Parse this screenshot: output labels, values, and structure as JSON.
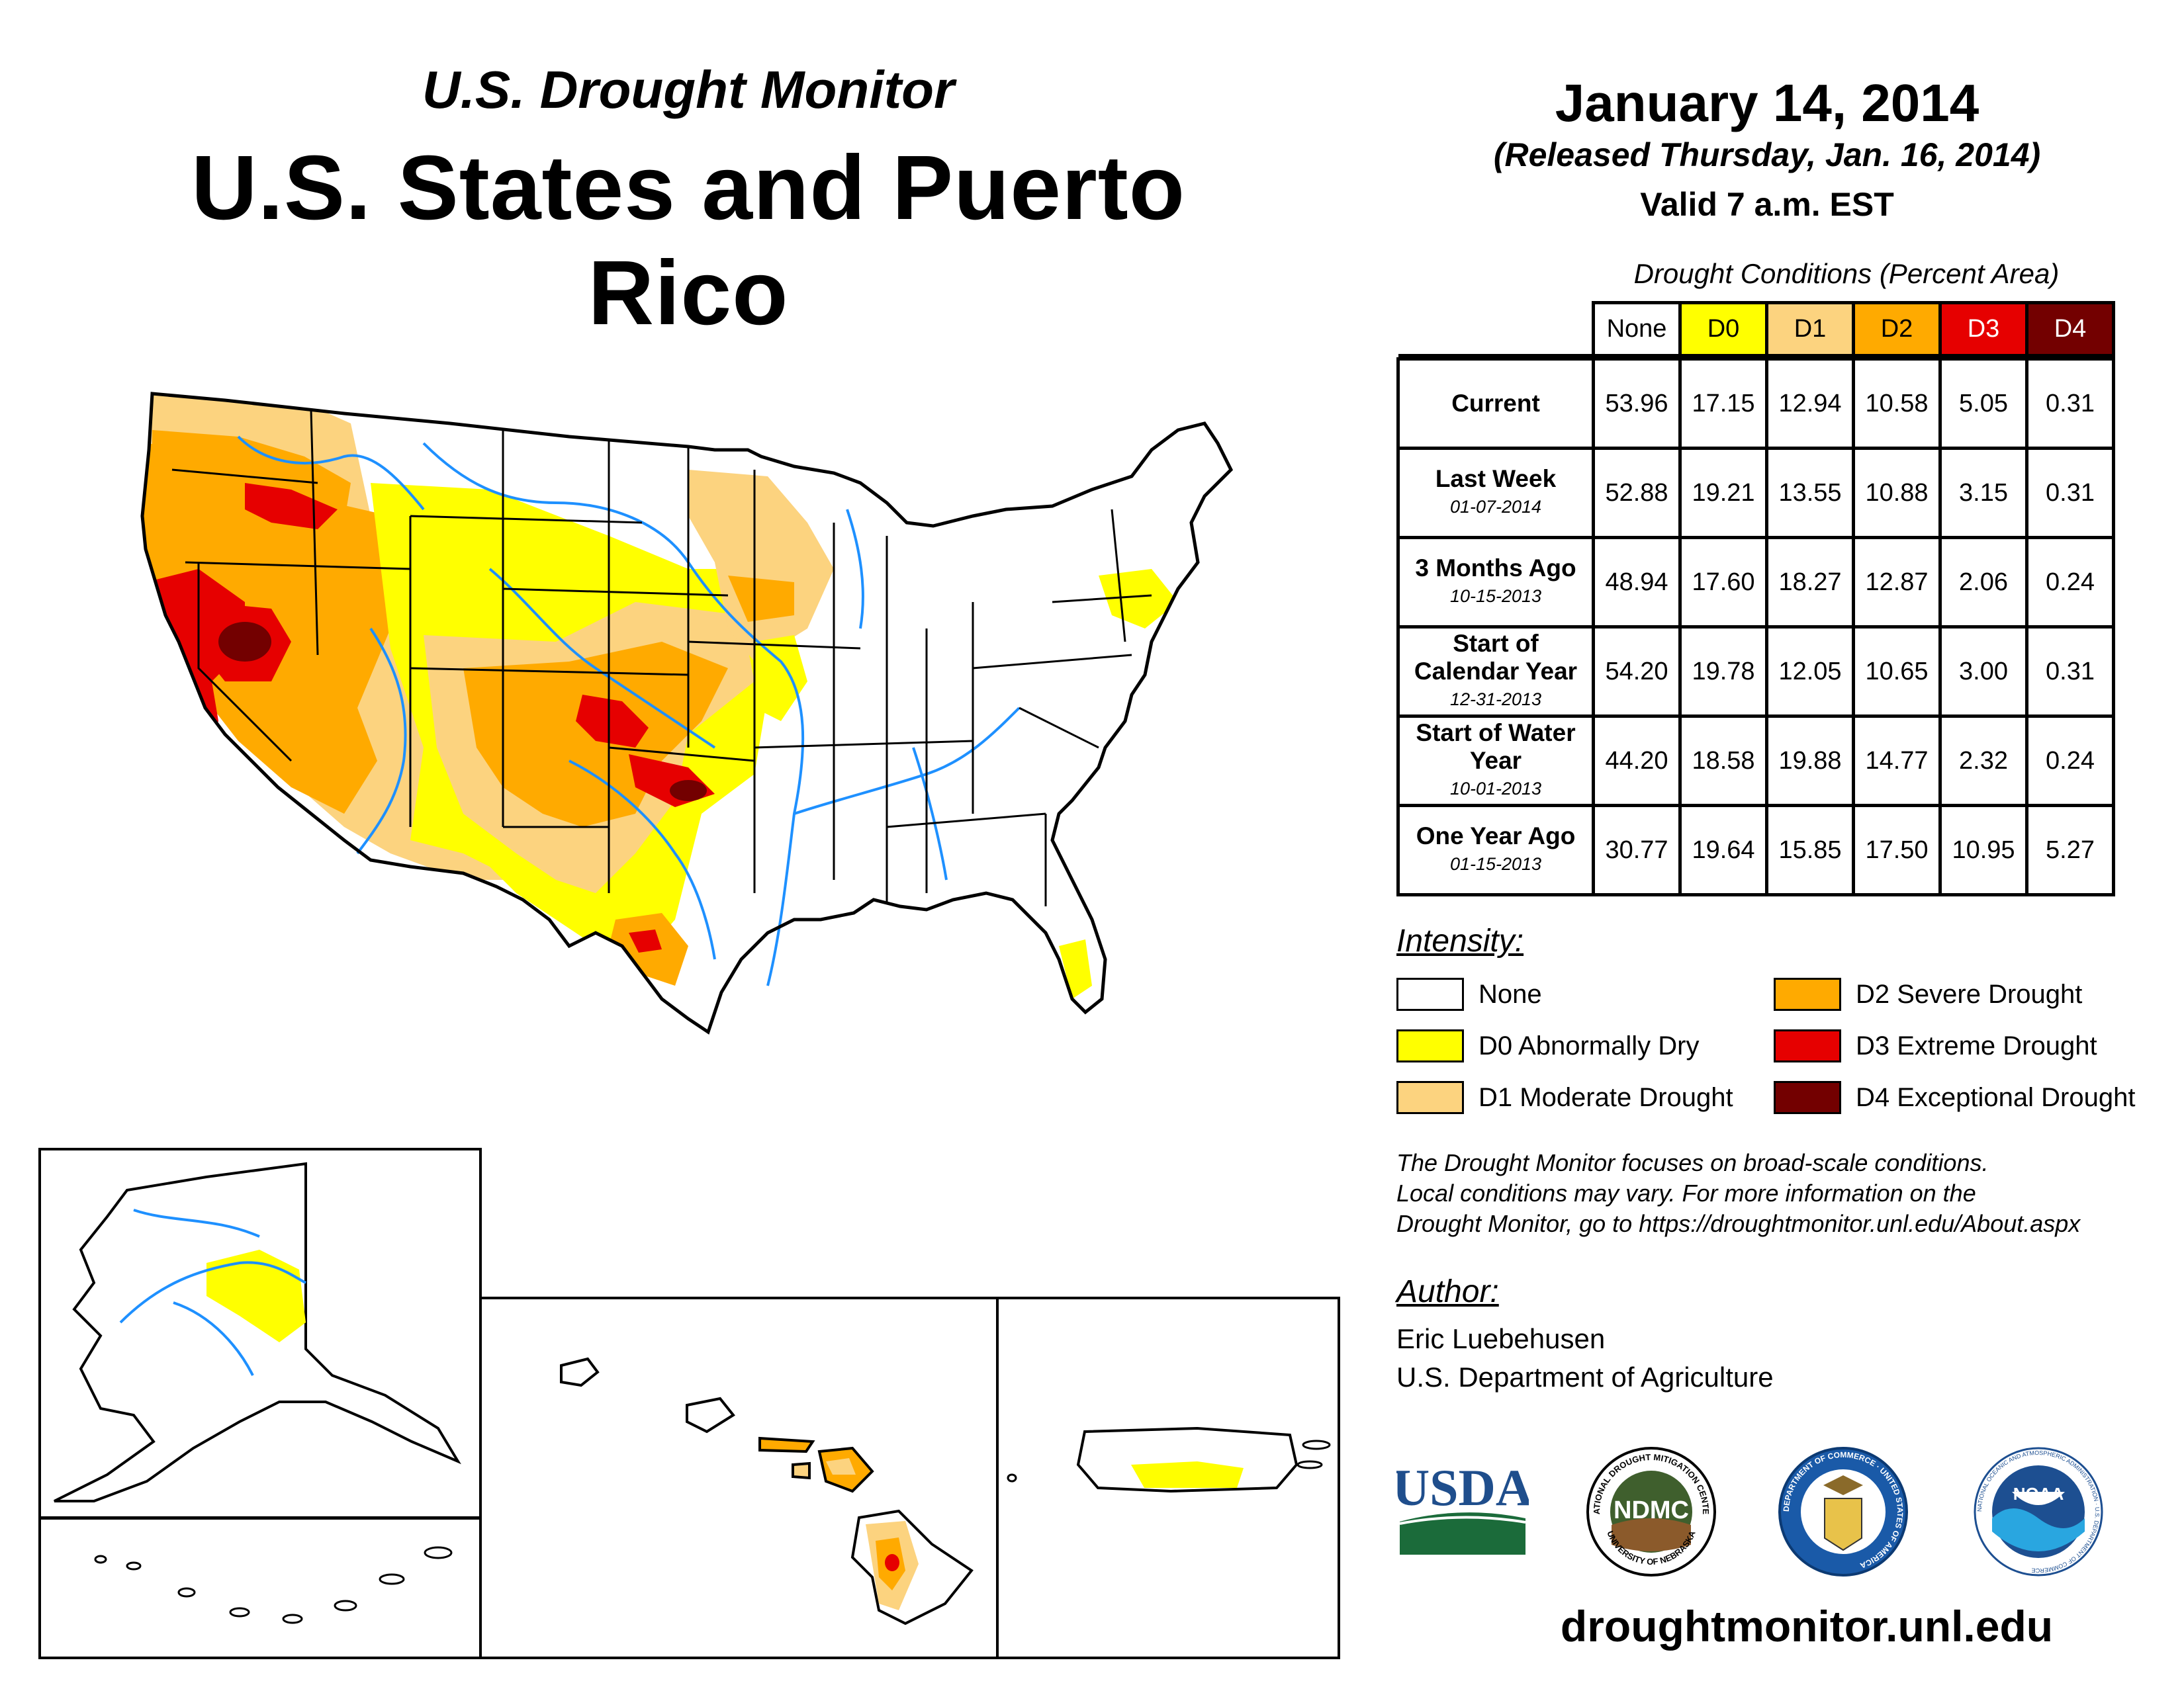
{
  "header": {
    "subtitle": "U.S. Drought Monitor",
    "title": "U.S. States and Puerto Rico",
    "date": "January 14, 2014",
    "released": "(Released Thursday, Jan. 16, 2014)",
    "valid": "Valid 7 a.m. EST"
  },
  "table": {
    "caption": "Drought Conditions (Percent Area)",
    "columns": [
      "None",
      "D0",
      "D1",
      "D2",
      "D3",
      "D4"
    ],
    "rows": [
      {
        "label": "Current",
        "date": "",
        "values": [
          "53.96",
          "17.15",
          "12.94",
          "10.58",
          "5.05",
          "0.31"
        ]
      },
      {
        "label": "Last Week",
        "date": "01-07-2014",
        "values": [
          "52.88",
          "19.21",
          "13.55",
          "10.88",
          "3.15",
          "0.31"
        ]
      },
      {
        "label": "3 Months Ago",
        "date": "10-15-2013",
        "values": [
          "48.94",
          "17.60",
          "18.27",
          "12.87",
          "2.06",
          "0.24"
        ]
      },
      {
        "label": "Start of Calendar Year",
        "date": "12-31-2013",
        "values": [
          "54.20",
          "19.78",
          "12.05",
          "10.65",
          "3.00",
          "0.31"
        ]
      },
      {
        "label": "Start of Water Year",
        "date": "10-01-2013",
        "values": [
          "44.20",
          "18.58",
          "19.88",
          "14.77",
          "2.32",
          "0.24"
        ]
      },
      {
        "label": "One Year Ago",
        "date": "01-15-2013",
        "values": [
          "30.77",
          "19.64",
          "15.85",
          "17.50",
          "10.95",
          "5.27"
        ]
      }
    ]
  },
  "legend": {
    "title": "Intensity:",
    "items": [
      {
        "label": "None",
        "color": "#ffffff"
      },
      {
        "label": "D0 Abnormally Dry",
        "color": "#ffff00"
      },
      {
        "label": "D1 Moderate Drought",
        "color": "#fcd37f"
      },
      {
        "label": "D2 Severe Drought",
        "color": "#ffaa00"
      },
      {
        "label": "D3 Extreme Drought",
        "color": "#e60000"
      },
      {
        "label": "D4 Exceptional Drought",
        "color": "#730000"
      }
    ]
  },
  "disclaimer": [
    "The Drought Monitor focuses on broad-scale conditions.",
    "Local conditions may vary. For more information on the",
    "Drought Monitor, go to https://droughtmonitor.unl.edu/About.aspx"
  ],
  "author": {
    "title": "Author:",
    "name": "Eric Luebehusen",
    "org": "U.S. Department of Agriculture"
  },
  "logos": {
    "usda": "USDA",
    "ndmc": "NDMC",
    "ndmc_ring_top": "NATIONAL DROUGHT MITIGATION CENTER",
    "ndmc_ring_bottom": "UNIVERSITY OF NEBRASKA",
    "doc_ring": "DEPARTMENT OF COMMERCE · UNITED STATES OF AMERICA",
    "noaa": "NOAA",
    "noaa_ring": "NATIONAL OCEANIC AND ATMOSPHERIC ADMINISTRATION · U.S. DEPARTMENT OF COMMERCE"
  },
  "colors": {
    "water": "#1e90ff",
    "border": "#000000"
  },
  "site": "droughtmonitor.unl.edu"
}
